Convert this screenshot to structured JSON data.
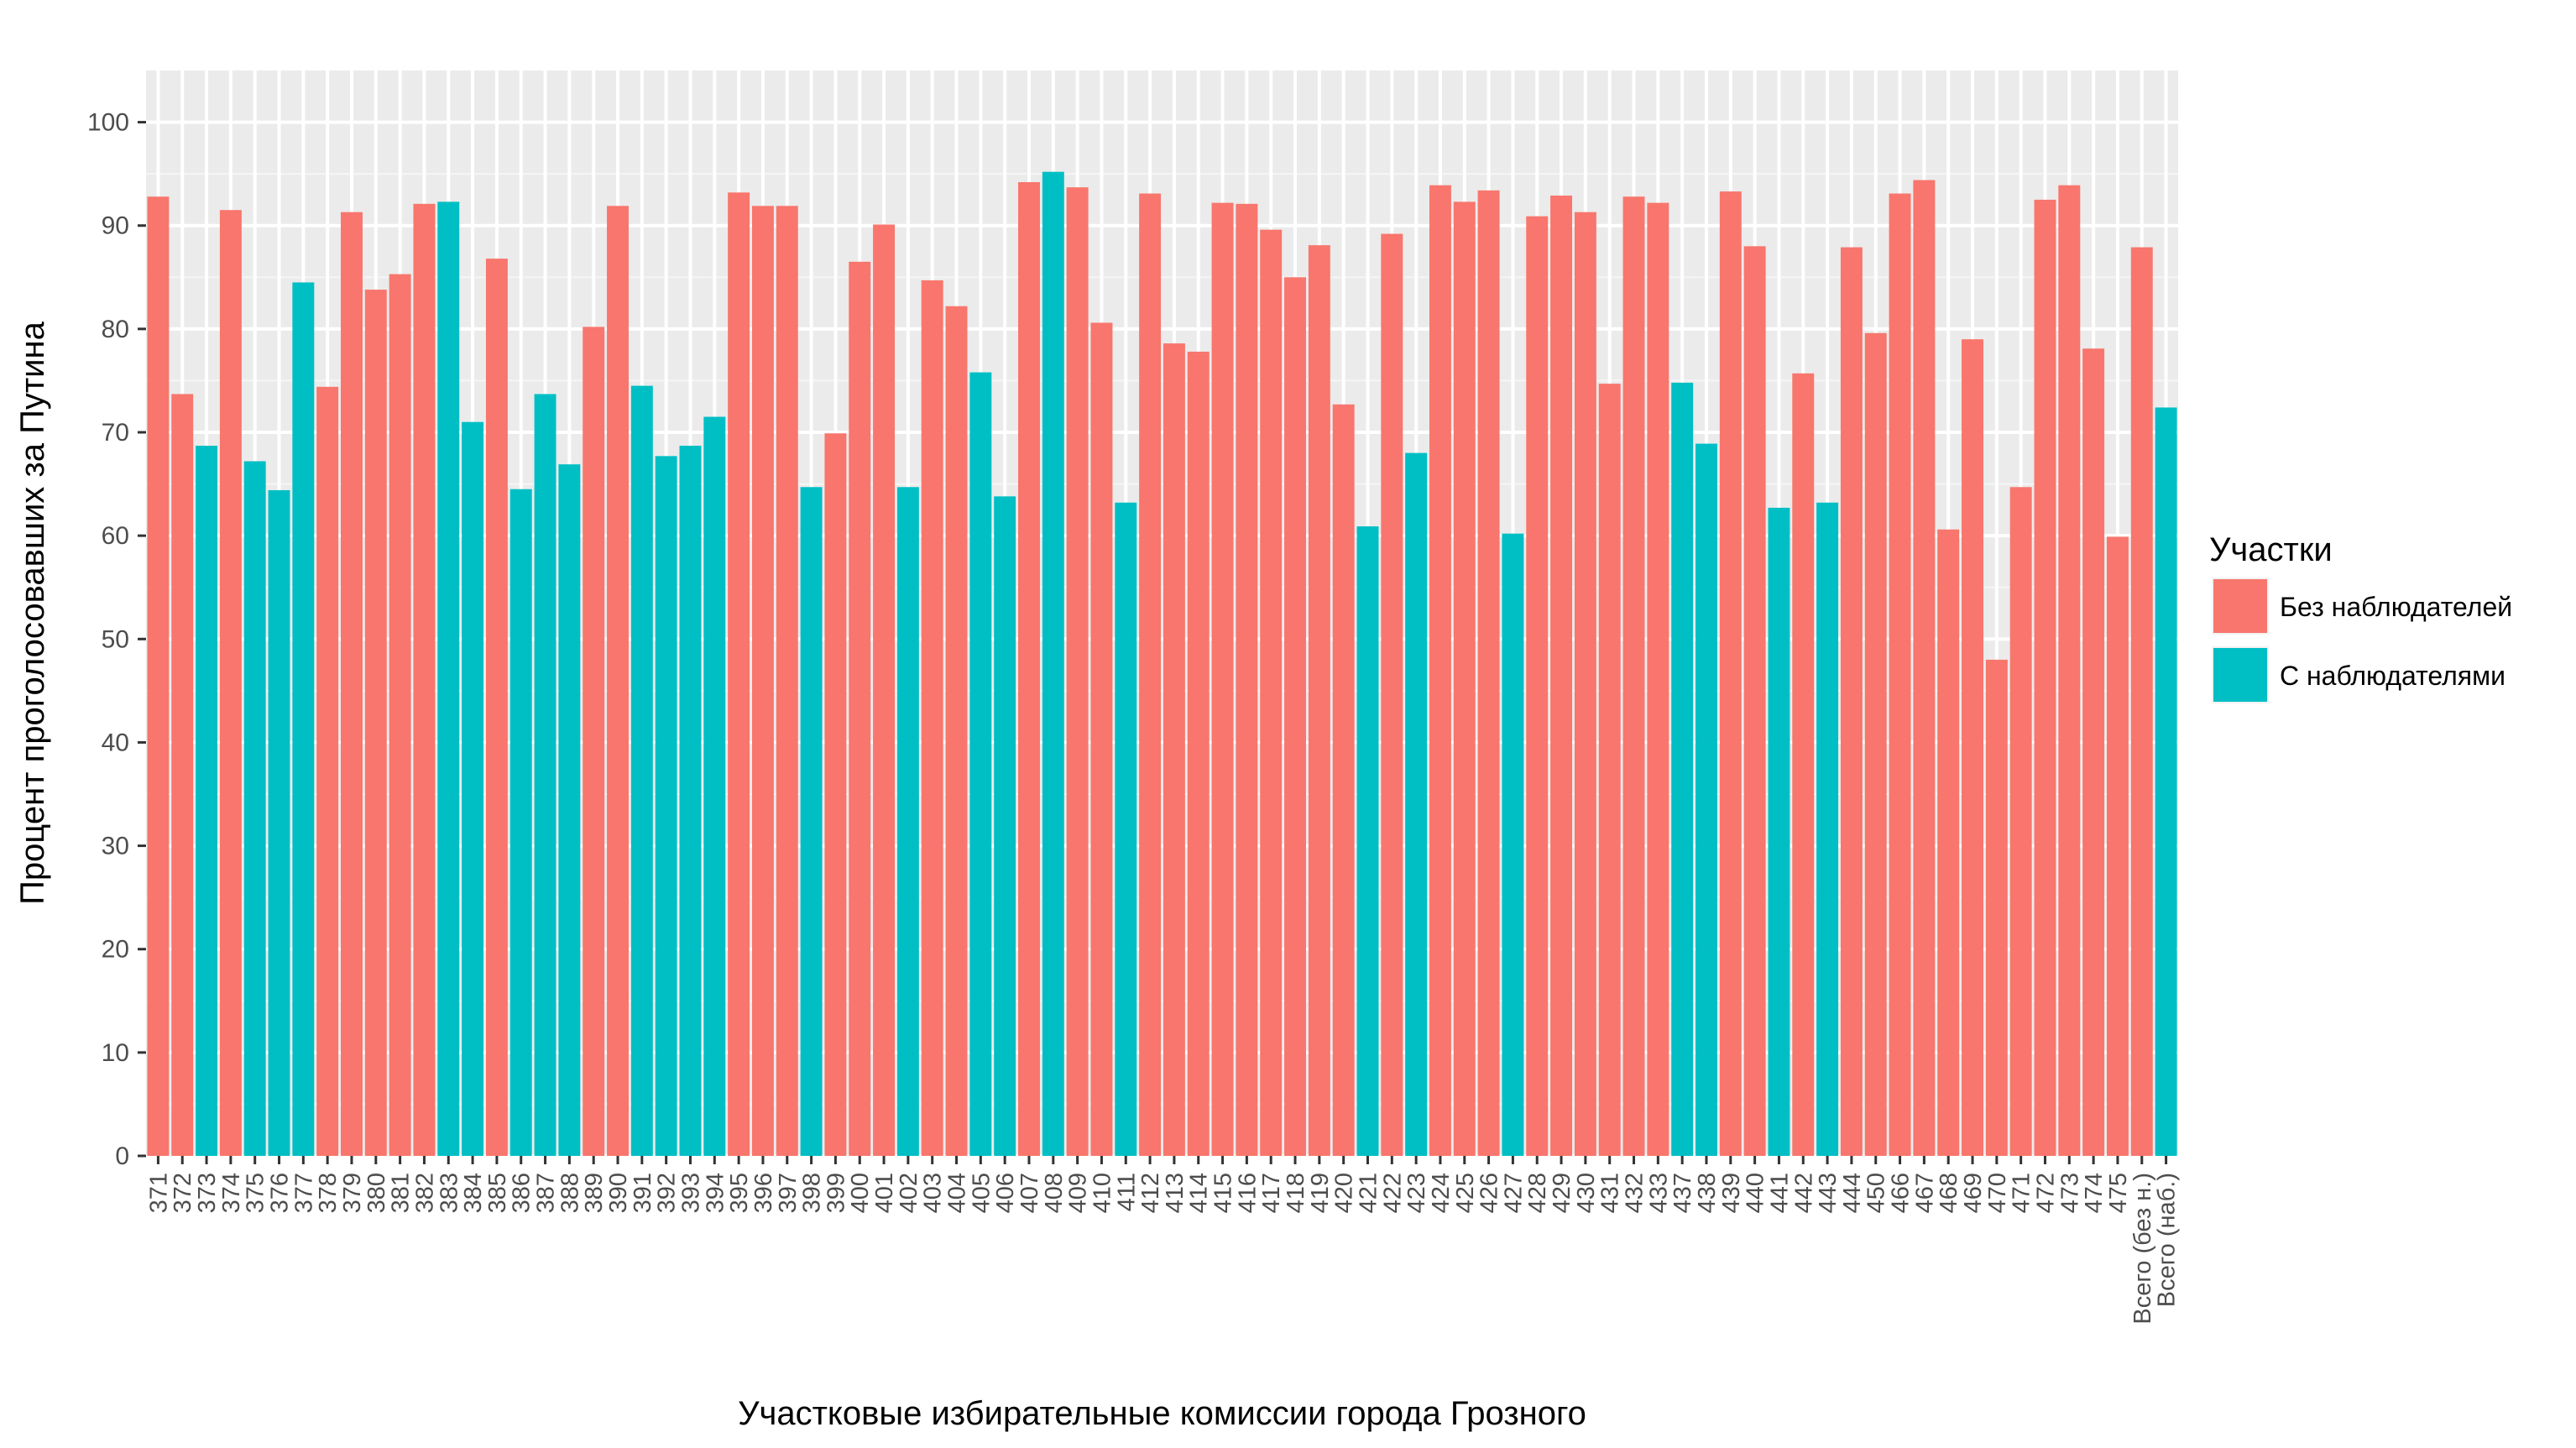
{
  "chart_data": {
    "type": "bar",
    "title": "",
    "xlabel": "Участковые избирательные комиссии города Грозного",
    "ylabel": "Процент проголосовавших за Путина",
    "ylim": [
      0,
      105
    ],
    "yticks": [
      0,
      10,
      20,
      30,
      40,
      50,
      60,
      70,
      80,
      90,
      100
    ],
    "grid": true,
    "legend": {
      "title": "Участки",
      "position": "right",
      "entries": [
        {
          "key": "no_obs",
          "label": "Без наблюдателей",
          "color": "#F8766D"
        },
        {
          "key": "obs",
          "label": "С наблюдателями",
          "color": "#00BFC4"
        }
      ]
    },
    "categories": [
      "371",
      "372",
      "373",
      "374",
      "375",
      "376",
      "377",
      "378",
      "379",
      "380",
      "381",
      "382",
      "383",
      "384",
      "385",
      "386",
      "387",
      "388",
      "389",
      "390",
      "391",
      "392",
      "393",
      "394",
      "395",
      "396",
      "397",
      "398",
      "399",
      "400",
      "401",
      "402",
      "403",
      "404",
      "405",
      "406",
      "407",
      "408",
      "409",
      "410",
      "411",
      "412",
      "413",
      "414",
      "415",
      "416",
      "417",
      "418",
      "419",
      "420",
      "421",
      "422",
      "423",
      "424",
      "425",
      "426",
      "427",
      "428",
      "429",
      "430",
      "431",
      "432",
      "433",
      "437",
      "438",
      "439",
      "440",
      "441",
      "442",
      "443",
      "444",
      "450",
      "466",
      "467",
      "468",
      "469",
      "470",
      "471",
      "472",
      "473",
      "474",
      "475",
      "Всего (без н.)",
      "Всего (наб.)"
    ],
    "values": [
      92.8,
      73.7,
      68.7,
      91.5,
      67.2,
      64.4,
      84.5,
      74.4,
      91.3,
      83.8,
      85.3,
      92.1,
      92.3,
      71.0,
      86.8,
      64.5,
      73.7,
      66.9,
      80.2,
      91.9,
      74.5,
      67.7,
      68.7,
      71.5,
      93.2,
      91.9,
      91.9,
      64.7,
      69.9,
      86.5,
      90.1,
      64.7,
      84.7,
      82.2,
      75.8,
      63.8,
      94.2,
      95.2,
      93.7,
      80.6,
      63.2,
      93.1,
      78.6,
      77.8,
      92.2,
      92.1,
      89.6,
      85.0,
      88.1,
      72.7,
      60.9,
      89.2,
      68.0,
      93.9,
      92.3,
      93.4,
      60.2,
      90.9,
      92.9,
      91.3,
      74.7,
      92.8,
      92.2,
      74.8,
      68.9,
      93.3,
      88.0,
      62.7,
      75.7,
      63.2,
      87.9,
      79.6,
      93.1,
      94.4,
      60.6,
      79.0,
      48.0,
      64.7,
      92.5,
      93.9,
      78.1,
      59.9,
      87.9,
      72.4
    ],
    "groups": [
      "no_obs",
      "no_obs",
      "obs",
      "no_obs",
      "obs",
      "obs",
      "obs",
      "no_obs",
      "no_obs",
      "no_obs",
      "no_obs",
      "no_obs",
      "obs",
      "obs",
      "no_obs",
      "obs",
      "obs",
      "obs",
      "no_obs",
      "no_obs",
      "obs",
      "obs",
      "obs",
      "obs",
      "no_obs",
      "no_obs",
      "no_obs",
      "obs",
      "no_obs",
      "no_obs",
      "no_obs",
      "obs",
      "no_obs",
      "no_obs",
      "obs",
      "obs",
      "no_obs",
      "obs",
      "no_obs",
      "no_obs",
      "obs",
      "no_obs",
      "no_obs",
      "no_obs",
      "no_obs",
      "no_obs",
      "no_obs",
      "no_obs",
      "no_obs",
      "no_obs",
      "obs",
      "no_obs",
      "obs",
      "no_obs",
      "no_obs",
      "no_obs",
      "obs",
      "no_obs",
      "no_obs",
      "no_obs",
      "no_obs",
      "no_obs",
      "no_obs",
      "obs",
      "obs",
      "no_obs",
      "no_obs",
      "obs",
      "no_obs",
      "obs",
      "no_obs",
      "no_obs",
      "no_obs",
      "no_obs",
      "no_obs",
      "no_obs",
      "no_obs",
      "no_obs",
      "no_obs",
      "no_obs",
      "no_obs",
      "no_obs",
      "no_obs",
      "obs"
    ]
  }
}
